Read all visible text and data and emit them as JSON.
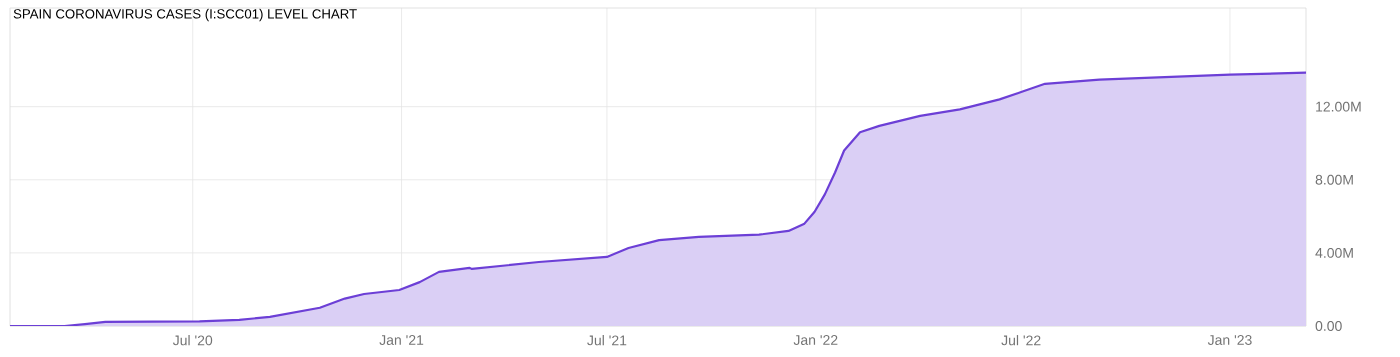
{
  "chart_data": {
    "type": "area",
    "title": "SPAIN CORONAVIRUS CASES (I:SCC01) LEVEL CHART",
    "x": [
      "2020-01-22",
      "2020-03-10",
      "2020-03-28",
      "2020-04-15",
      "2020-07-07",
      "2020-08-11",
      "2020-09-07",
      "2020-10-21",
      "2020-11-12",
      "2020-11-29",
      "2020-12-30",
      "2021-01-17",
      "2021-02-03",
      "2021-03-02",
      "2021-03-04",
      "2021-05-02",
      "2021-07-01",
      "2021-07-20",
      "2021-08-16",
      "2021-09-20",
      "2021-11-12",
      "2021-12-08",
      "2021-12-22",
      "2021-12-31",
      "2022-01-09",
      "2022-01-18",
      "2022-01-26",
      "2022-02-09",
      "2022-02-26",
      "2022-04-03",
      "2022-05-08",
      "2022-06-12",
      "2022-07-01",
      "2022-07-22",
      "2022-09-08",
      "2023-01-01",
      "2023-03-09"
    ],
    "series": [
      {
        "color": "#6c3fd6",
        "values": [
          0,
          0,
          100000,
          220000,
          250000,
          330000,
          500000,
          1000000,
          1500000,
          1750000,
          1970000,
          2400000,
          2960000,
          3180000,
          3120000,
          3500000,
          3780000,
          4270000,
          4700000,
          4880000,
          5000000,
          5200000,
          5600000,
          6250000,
          7200000,
          8400000,
          9600000,
          10600000,
          10950000,
          11500000,
          11850000,
          12400000,
          12800000,
          13250000,
          13480000,
          13750000,
          13860000
        ]
      }
    ],
    "xlim": [
      "2020-01-22",
      "2023-03-09"
    ],
    "xticks": [
      {
        "value": "2020-07-01",
        "label": "Jul '20"
      },
      {
        "value": "2021-01-01",
        "label": "Jan '21"
      },
      {
        "value": "2021-07-01",
        "label": "Jul '21"
      },
      {
        "value": "2022-01-01",
        "label": "Jan '22"
      },
      {
        "value": "2022-07-01",
        "label": "Jul '22"
      },
      {
        "value": "2023-01-01",
        "label": "Jan '23"
      }
    ],
    "ylim": [
      0,
      17400000
    ],
    "yticks": [
      {
        "value": 0,
        "label": "0.00"
      },
      {
        "value": 4000000,
        "label": "4.00M"
      },
      {
        "value": 8000000,
        "label": "8.00M"
      },
      {
        "value": 12000000,
        "label": "12.00M"
      }
    ],
    "grid": true
  }
}
